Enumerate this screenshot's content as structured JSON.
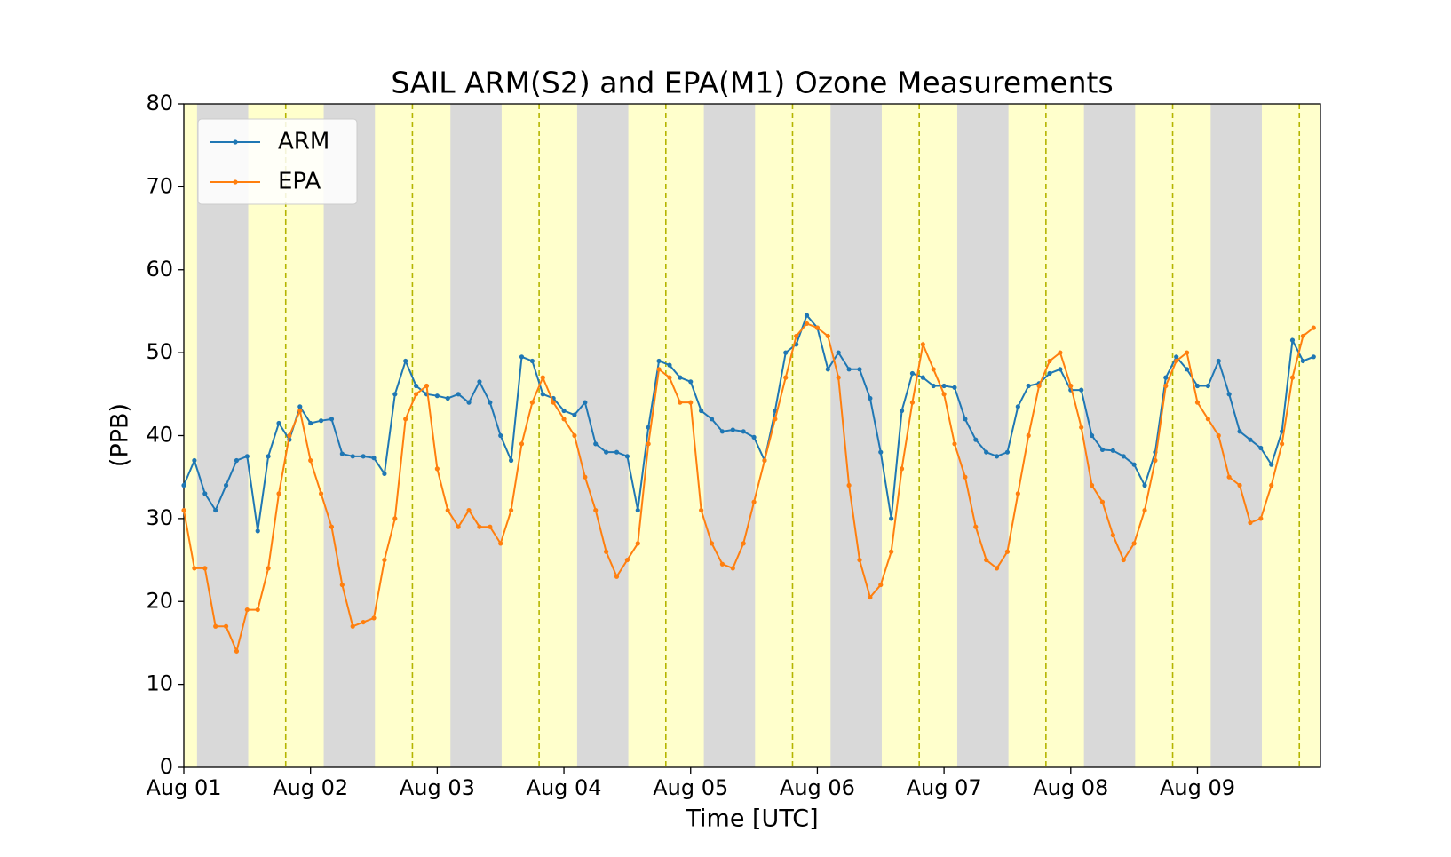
{
  "chart_data": {
    "type": "line",
    "title": "SAIL ARM(S2) and EPA(M1) Ozone Measurements",
    "xlabel": "Time [UTC]",
    "ylabel": "(PPB)",
    "x": [
      0,
      2,
      4,
      6,
      8,
      10,
      12,
      14,
      16,
      18,
      20,
      22,
      24,
      26,
      28,
      30,
      32,
      34,
      36,
      38,
      40,
      42,
      44,
      46,
      48,
      50,
      52,
      54,
      56,
      58,
      60,
      62,
      64,
      66,
      68,
      70,
      72,
      74,
      76,
      78,
      80,
      82,
      84,
      86,
      88,
      90,
      92,
      94,
      96,
      98,
      100,
      102,
      104,
      106,
      108,
      110,
      112,
      114,
      116,
      118,
      120,
      122,
      124,
      126,
      128,
      130,
      132,
      134,
      136,
      138,
      140,
      142,
      144,
      146,
      148,
      150,
      152,
      154,
      156,
      158,
      160,
      162,
      164,
      166,
      168,
      170,
      172,
      174,
      176,
      178,
      180,
      182,
      184,
      186,
      188,
      190,
      192,
      194,
      196,
      198,
      200,
      202,
      204,
      206,
      208,
      210,
      212,
      214
    ],
    "series": [
      {
        "name": "ARM",
        "color": "#1f77b4",
        "values": [
          34,
          37,
          33,
          31,
          34,
          37,
          37.5,
          28.5,
          37.5,
          41.5,
          39.5,
          43.5,
          41.5,
          41.8,
          42,
          37.8,
          37.5,
          37.5,
          37.3,
          35.4,
          45,
          49,
          46,
          45,
          44.8,
          44.5,
          45,
          44,
          46.5,
          44,
          40,
          37,
          49.5,
          49,
          45,
          44.5,
          43,
          42.5,
          44,
          39,
          38,
          38,
          37.5,
          31,
          41,
          49,
          48.5,
          47,
          46.5,
          43,
          42,
          40.5,
          40.7,
          40.5,
          39.8,
          37,
          43,
          50,
          51,
          54.5,
          53,
          48,
          50,
          48,
          48,
          44.5,
          38,
          30,
          43,
          47.5,
          47,
          46,
          46,
          45.8,
          42,
          39.5,
          38,
          37.5,
          38,
          43.5,
          46,
          46.3,
          47.5,
          48,
          45.5,
          45.5,
          40,
          38.3,
          38.2,
          37.5,
          36.5,
          34,
          38,
          47,
          49.5,
          48,
          46,
          46,
          49,
          45,
          40.5,
          39.5,
          38.5,
          36.5,
          40.5,
          51.5,
          49,
          49.5
        ]
      },
      {
        "name": "EPA",
        "color": "#ff7f0e",
        "values": [
          31,
          24,
          24,
          17,
          17,
          14,
          19,
          19,
          24,
          33,
          40,
          43,
          37,
          33,
          29,
          22,
          17,
          17.5,
          18,
          25,
          30,
          42,
          45,
          46,
          36,
          31,
          29,
          31,
          29,
          29,
          27,
          31,
          39,
          44,
          47,
          44,
          42,
          40,
          35,
          31,
          26,
          23,
          25,
          27,
          39,
          48,
          47,
          44,
          44,
          31,
          27,
          24.5,
          24,
          27,
          32,
          37,
          42,
          47,
          52,
          53.5,
          53,
          52,
          47,
          34,
          25,
          20.5,
          22,
          26,
          36,
          44,
          51,
          48,
          45,
          39,
          35,
          29,
          25,
          24,
          26,
          33,
          40,
          46,
          49,
          50,
          46,
          41,
          34,
          32,
          28,
          25,
          27,
          31,
          37,
          46,
          49,
          50,
          44,
          42,
          40,
          35,
          34,
          29.5,
          30,
          34,
          39,
          47,
          52,
          53
        ]
      }
    ],
    "xlim": [
      0,
      215.3
    ],
    "ylim": [
      0,
      80
    ],
    "xticks": [
      {
        "value": 0,
        "label": "Aug 01"
      },
      {
        "value": 24,
        "label": "Aug 02"
      },
      {
        "value": 48,
        "label": "Aug 03"
      },
      {
        "value": 72,
        "label": "Aug 04"
      },
      {
        "value": 96,
        "label": "Aug 05"
      },
      {
        "value": 120,
        "label": "Aug 06"
      },
      {
        "value": 144,
        "label": "Aug 07"
      },
      {
        "value": 168,
        "label": "Aug 08"
      },
      {
        "value": 192,
        "label": "Aug 09"
      }
    ],
    "yticks": [
      0,
      10,
      20,
      30,
      40,
      50,
      60,
      70,
      80
    ],
    "night_bands": [
      [
        2.5,
        12.2
      ],
      [
        26.5,
        36.2
      ],
      [
        50.5,
        60.2
      ],
      [
        74.5,
        84.2
      ],
      [
        98.5,
        108.2
      ],
      [
        122.5,
        132.2
      ],
      [
        146.5,
        156.2
      ],
      [
        170.5,
        180.2
      ],
      [
        194.5,
        204.2
      ]
    ],
    "noon_lines": [
      19.3,
      43.3,
      67.3,
      91.3,
      115.3,
      139.3,
      163.3,
      187.3,
      211.3
    ],
    "day_color": "#ffffcc",
    "night_color": "#d9d9d9",
    "noon_color": "#b5b500",
    "legend": "upper left"
  }
}
